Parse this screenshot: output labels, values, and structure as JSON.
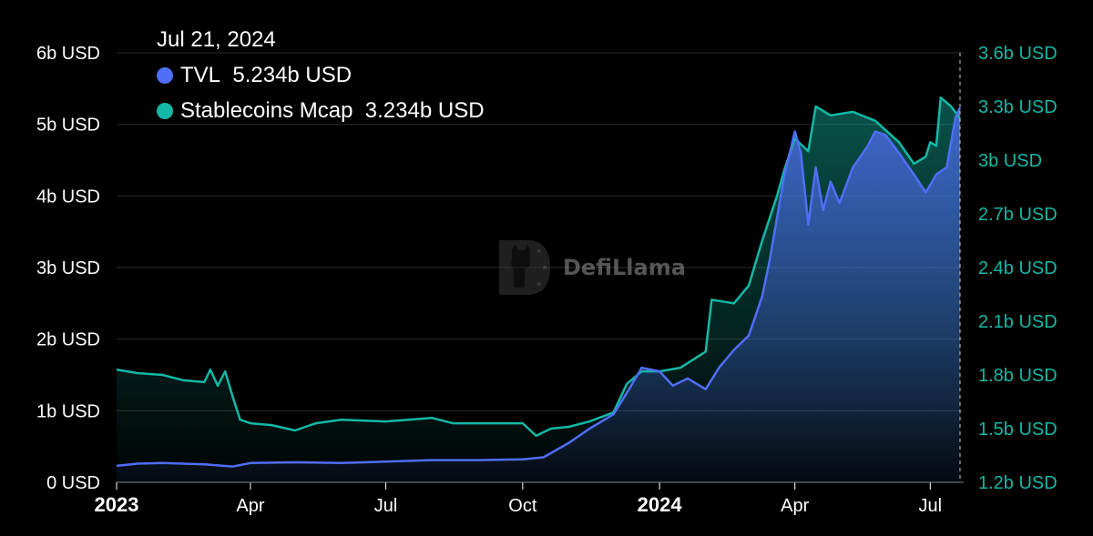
{
  "tooltip": {
    "date": "Jul 21, 2024",
    "tvl_label": "TVL",
    "tvl_value": "5.234b USD",
    "stable_label": "Stablecoins Mcap",
    "stable_value": "3.234b USD"
  },
  "watermark": {
    "text": "DefiLlama"
  },
  "colors": {
    "tvl": "#4f6ef7",
    "stablecoins": "#14b8a6",
    "background": "#000000",
    "grid": "#2a2a2a"
  },
  "chart_data": {
    "type": "line",
    "title": "",
    "x_axis": {
      "ticks": [
        {
          "label": "2023",
          "date": "2023-01-01",
          "bold": true
        },
        {
          "label": "Apr",
          "date": "2023-04-01"
        },
        {
          "label": "Jul",
          "date": "2023-07-01"
        },
        {
          "label": "Oct",
          "date": "2023-10-01"
        },
        {
          "label": "2024",
          "date": "2024-01-01",
          "bold": true
        },
        {
          "label": "Apr",
          "date": "2024-04-01"
        },
        {
          "label": "Jul",
          "date": "2024-07-01"
        }
      ],
      "range": [
        "2023-01-01",
        "2024-07-21"
      ]
    },
    "left_axis": {
      "unit": "USD",
      "ticks": [
        "0 USD",
        "1b USD",
        "2b USD",
        "3b USD",
        "4b USD",
        "5b USD",
        "6b USD"
      ],
      "range": [
        0,
        6
      ]
    },
    "right_axis": {
      "unit": "USD",
      "ticks": [
        "1.2b USD",
        "1.5b USD",
        "1.8b USD",
        "2.1b USD",
        "2.4b USD",
        "2.7b USD",
        "3b USD",
        "3.3b USD",
        "3.6b USD"
      ],
      "range": [
        1.2,
        3.6
      ]
    },
    "grid": true,
    "crosshair_date": "2024-07-21",
    "series": [
      {
        "name": "TVL",
        "axis": "left",
        "unit": "b USD",
        "points": [
          [
            "2023-01-01",
            0.23
          ],
          [
            "2023-01-15",
            0.26
          ],
          [
            "2023-02-01",
            0.27
          ],
          [
            "2023-03-01",
            0.25
          ],
          [
            "2023-03-20",
            0.22
          ],
          [
            "2023-04-01",
            0.27
          ],
          [
            "2023-05-01",
            0.28
          ],
          [
            "2023-06-01",
            0.27
          ],
          [
            "2023-07-01",
            0.29
          ],
          [
            "2023-08-01",
            0.31
          ],
          [
            "2023-09-01",
            0.31
          ],
          [
            "2023-10-01",
            0.32
          ],
          [
            "2023-10-15",
            0.35
          ],
          [
            "2023-11-01",
            0.55
          ],
          [
            "2023-11-15",
            0.75
          ],
          [
            "2023-12-01",
            0.95
          ],
          [
            "2023-12-10",
            1.25
          ],
          [
            "2023-12-20",
            1.6
          ],
          [
            "2024-01-01",
            1.55
          ],
          [
            "2024-01-10",
            1.35
          ],
          [
            "2024-01-20",
            1.45
          ],
          [
            "2024-02-01",
            1.3
          ],
          [
            "2024-02-10",
            1.6
          ],
          [
            "2024-02-20",
            1.85
          ],
          [
            "2024-03-01",
            2.05
          ],
          [
            "2024-03-10",
            2.6
          ],
          [
            "2024-03-15",
            3.1
          ],
          [
            "2024-03-20",
            3.7
          ],
          [
            "2024-03-25",
            4.3
          ],
          [
            "2024-04-01",
            4.9
          ],
          [
            "2024-04-05",
            4.6
          ],
          [
            "2024-04-10",
            3.6
          ],
          [
            "2024-04-15",
            4.4
          ],
          [
            "2024-04-20",
            3.8
          ],
          [
            "2024-04-25",
            4.2
          ],
          [
            "2024-05-01",
            3.9
          ],
          [
            "2024-05-10",
            4.4
          ],
          [
            "2024-05-20",
            4.7
          ],
          [
            "2024-05-25",
            4.9
          ],
          [
            "2024-06-01",
            4.85
          ],
          [
            "2024-06-10",
            4.6
          ],
          [
            "2024-06-20",
            4.3
          ],
          [
            "2024-06-28",
            4.05
          ],
          [
            "2024-07-05",
            4.3
          ],
          [
            "2024-07-12",
            4.4
          ],
          [
            "2024-07-18",
            5.1
          ],
          [
            "2024-07-21",
            5.234
          ]
        ]
      },
      {
        "name": "Stablecoins Mcap",
        "axis": "right",
        "unit": "b USD",
        "points": [
          [
            "2023-01-01",
            1.83
          ],
          [
            "2023-01-15",
            1.81
          ],
          [
            "2023-02-01",
            1.8
          ],
          [
            "2023-02-15",
            1.77
          ],
          [
            "2023-03-01",
            1.76
          ],
          [
            "2023-03-05",
            1.83
          ],
          [
            "2023-03-10",
            1.74
          ],
          [
            "2023-03-15",
            1.82
          ],
          [
            "2023-03-20",
            1.68
          ],
          [
            "2023-03-25",
            1.55
          ],
          [
            "2023-04-01",
            1.53
          ],
          [
            "2023-04-15",
            1.52
          ],
          [
            "2023-05-01",
            1.49
          ],
          [
            "2023-05-15",
            1.53
          ],
          [
            "2023-06-01",
            1.55
          ],
          [
            "2023-07-01",
            1.54
          ],
          [
            "2023-08-01",
            1.56
          ],
          [
            "2023-08-15",
            1.53
          ],
          [
            "2023-09-01",
            1.53
          ],
          [
            "2023-10-01",
            1.53
          ],
          [
            "2023-10-10",
            1.46
          ],
          [
            "2023-10-20",
            1.5
          ],
          [
            "2023-11-01",
            1.51
          ],
          [
            "2023-11-15",
            1.54
          ],
          [
            "2023-12-01",
            1.59
          ],
          [
            "2023-12-10",
            1.75
          ],
          [
            "2023-12-20",
            1.82
          ],
          [
            "2024-01-01",
            1.82
          ],
          [
            "2024-01-15",
            1.84
          ],
          [
            "2024-02-01",
            1.93
          ],
          [
            "2024-02-05",
            2.22
          ],
          [
            "2024-02-20",
            2.2
          ],
          [
            "2024-03-01",
            2.3
          ],
          [
            "2024-03-10",
            2.55
          ],
          [
            "2024-03-20",
            2.8
          ],
          [
            "2024-03-25",
            2.95
          ],
          [
            "2024-04-01",
            3.12
          ],
          [
            "2024-04-10",
            3.05
          ],
          [
            "2024-04-15",
            3.3
          ],
          [
            "2024-04-25",
            3.25
          ],
          [
            "2024-05-10",
            3.27
          ],
          [
            "2024-05-25",
            3.22
          ],
          [
            "2024-06-10",
            3.1
          ],
          [
            "2024-06-20",
            2.98
          ],
          [
            "2024-06-28",
            3.02
          ],
          [
            "2024-07-01",
            3.1
          ],
          [
            "2024-07-05",
            3.08
          ],
          [
            "2024-07-08",
            3.35
          ],
          [
            "2024-07-15",
            3.3
          ],
          [
            "2024-07-21",
            3.234
          ]
        ]
      }
    ]
  }
}
